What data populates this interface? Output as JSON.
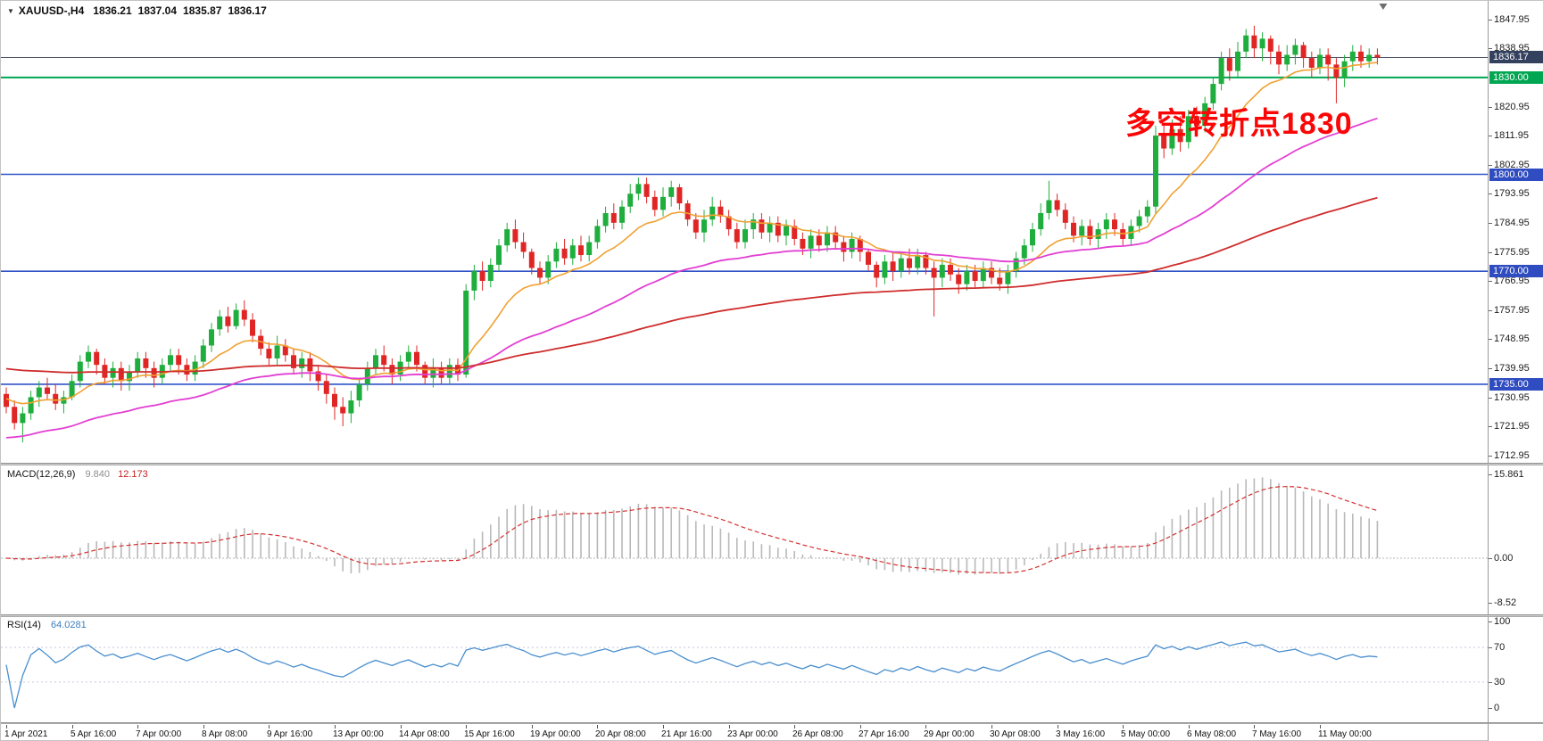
{
  "title": {
    "symbol_tf": "XAUUSD-,H4",
    "open": "1836.21",
    "high": "1837.04",
    "low": "1835.87",
    "close": "1836.17"
  },
  "annotation": {
    "text": "多空转折点1830",
    "color": "#fb0606"
  },
  "indicators": {
    "macd": {
      "label": "MACD(12,26,9)",
      "main_value": "9.840",
      "signal_value": "12.173"
    },
    "rsi": {
      "label": "RSI(14)",
      "value": "64.0281"
    }
  },
  "chart_data": [
    {
      "type": "candlestick",
      "symbol": "XAUUSD-",
      "timeframe": "H4",
      "title": "XAUUSD-,H4 1836.21 1837.04 1835.87 1836.17",
      "ylim": [
        1710.7,
        1853.7
      ],
      "y_ticks": [
        1847.95,
        1838.95,
        1820.95,
        1811.95,
        1802.95,
        1793.95,
        1784.95,
        1775.95,
        1766.95,
        1757.95,
        1748.95,
        1739.95,
        1730.95,
        1721.95,
        1712.95
      ],
      "x_labels": [
        "1 Apr 2021",
        "5 Apr 16:00",
        "7 Apr 00:00",
        "8 Apr 08:00",
        "9 Apr 16:00",
        "13 Apr 00:00",
        "14 Apr 08:00",
        "15 Apr 16:00",
        "19 Apr 00:00",
        "20 Apr 08:00",
        "21 Apr 16:00",
        "23 Apr 00:00",
        "26 Apr 08:00",
        "27 Apr 16:00",
        "29 Apr 00:00",
        "30 Apr 08:00",
        "3 May 16:00",
        "5 May 00:00",
        "6 May 08:00",
        "7 May 16:00",
        "11 May 00:00"
      ],
      "bars_per_label": 8,
      "colors": {
        "up": "#1fae3d",
        "down": "#e02525",
        "background": "#ffffff"
      },
      "price_badges": [
        {
          "price": 1836.17,
          "label": "1836.17",
          "bg": "#33415e"
        },
        {
          "price": 1830.0,
          "label": "1830.00",
          "bg": "#00a651"
        },
        {
          "price": 1800.0,
          "label": "1800.00",
          "bg": "#2f4cc0"
        },
        {
          "price": 1770.0,
          "label": "1770.00",
          "bg": "#2f4cc0"
        },
        {
          "price": 1735.0,
          "label": "1735.00",
          "bg": "#2f4cc0"
        }
      ],
      "horizontal_lines": [
        {
          "price": 1836.17,
          "color": "#4a5568",
          "width": 1,
          "style": "solid"
        },
        {
          "price": 1830.0,
          "color": "#00a651",
          "width": 2,
          "style": "solid"
        },
        {
          "price": 1800.0,
          "color": "#3152c8",
          "width": 1.6,
          "style": "solid"
        },
        {
          "price": 1770.0,
          "color": "#3152c8",
          "width": 1.6,
          "style": "solid"
        },
        {
          "price": 1735.0,
          "color": "#3152c8",
          "width": 1.6,
          "style": "solid"
        }
      ],
      "moving_averages": [
        {
          "name": "ma-fast",
          "period": 13,
          "seed": 1731,
          "color": "#f0a132",
          "width": 1.6
        },
        {
          "name": "ma-mid",
          "period": 45,
          "seed": 1718,
          "color": "#e23fd2",
          "width": 1.8
        },
        {
          "name": "ma-slow",
          "period": 120,
          "seed": 1740,
          "color": "#cf2c2c",
          "width": 1.8
        }
      ],
      "candles_ohlc": [
        [
          1732,
          1734,
          1726,
          1728
        ],
        [
          1728,
          1730,
          1721,
          1723
        ],
        [
          1723,
          1728,
          1717,
          1726
        ],
        [
          1726,
          1733,
          1724,
          1731
        ],
        [
          1731,
          1736,
          1728,
          1734
        ],
        [
          1734,
          1737,
          1730,
          1732
        ],
        [
          1732,
          1735,
          1727,
          1729
        ],
        [
          1729,
          1733,
          1726,
          1731
        ],
        [
          1731,
          1738,
          1730,
          1736
        ],
        [
          1736,
          1744,
          1734,
          1742
        ],
        [
          1742,
          1747,
          1740,
          1745
        ],
        [
          1745,
          1746,
          1738,
          1741
        ],
        [
          1741,
          1743,
          1735,
          1737
        ],
        [
          1737,
          1742,
          1734,
          1740
        ],
        [
          1740,
          1742,
          1733,
          1736
        ],
        [
          1736,
          1741,
          1733,
          1739
        ],
        [
          1739,
          1745,
          1737,
          1743
        ],
        [
          1743,
          1745,
          1737,
          1740
        ],
        [
          1740,
          1742,
          1734,
          1737
        ],
        [
          1737,
          1743,
          1735,
          1741
        ],
        [
          1741,
          1746,
          1739,
          1744
        ],
        [
          1744,
          1746,
          1738,
          1741
        ],
        [
          1741,
          1743,
          1736,
          1738
        ],
        [
          1738,
          1744,
          1736,
          1742
        ],
        [
          1742,
          1749,
          1740,
          1747
        ],
        [
          1747,
          1754,
          1745,
          1752
        ],
        [
          1752,
          1758,
          1750,
          1756
        ],
        [
          1756,
          1759,
          1751,
          1753
        ],
        [
          1753,
          1760,
          1752,
          1758
        ],
        [
          1758,
          1761,
          1753,
          1755
        ],
        [
          1755,
          1757,
          1748,
          1750
        ],
        [
          1750,
          1752,
          1744,
          1746
        ],
        [
          1746,
          1748,
          1741,
          1743
        ],
        [
          1743,
          1750,
          1741,
          1747
        ],
        [
          1747,
          1749,
          1742,
          1744
        ],
        [
          1744,
          1746,
          1738,
          1740
        ],
        [
          1740,
          1745,
          1737,
          1743
        ],
        [
          1743,
          1745,
          1736,
          1739
        ],
        [
          1739,
          1741,
          1733,
          1736
        ],
        [
          1736,
          1738,
          1729,
          1732
        ],
        [
          1732,
          1734,
          1724,
          1728
        ],
        [
          1728,
          1731,
          1722,
          1726
        ],
        [
          1726,
          1733,
          1723,
          1730
        ],
        [
          1730,
          1737,
          1728,
          1735
        ],
        [
          1735,
          1742,
          1733,
          1740
        ],
        [
          1740,
          1746,
          1738,
          1744
        ],
        [
          1744,
          1747,
          1739,
          1741
        ],
        [
          1741,
          1743,
          1735,
          1738
        ],
        [
          1738,
          1744,
          1736,
          1742
        ],
        [
          1742,
          1747,
          1740,
          1745
        ],
        [
          1745,
          1747,
          1739,
          1741
        ],
        [
          1741,
          1742,
          1735,
          1737
        ],
        [
          1737,
          1743,
          1734,
          1740
        ],
        [
          1740,
          1742,
          1735,
          1737
        ],
        [
          1737,
          1743,
          1735,
          1741
        ],
        [
          1741,
          1743,
          1736,
          1738
        ],
        [
          1738,
          1766,
          1737,
          1764
        ],
        [
          1764,
          1772,
          1761,
          1770
        ],
        [
          1770,
          1773,
          1764,
          1767
        ],
        [
          1767,
          1774,
          1765,
          1772
        ],
        [
          1772,
          1780,
          1770,
          1778
        ],
        [
          1778,
          1785,
          1776,
          1783
        ],
        [
          1783,
          1786,
          1777,
          1779
        ],
        [
          1779,
          1782,
          1774,
          1776
        ],
        [
          1776,
          1777,
          1769,
          1771
        ],
        [
          1771,
          1773,
          1766,
          1768
        ],
        [
          1768,
          1775,
          1766,
          1773
        ],
        [
          1773,
          1779,
          1771,
          1777
        ],
        [
          1777,
          1780,
          1772,
          1774
        ],
        [
          1774,
          1780,
          1772,
          1778
        ],
        [
          1778,
          1781,
          1773,
          1775
        ],
        [
          1775,
          1781,
          1773,
          1779
        ],
        [
          1779,
          1786,
          1777,
          1784
        ],
        [
          1784,
          1790,
          1782,
          1788
        ],
        [
          1788,
          1791,
          1783,
          1785
        ],
        [
          1785,
          1792,
          1783,
          1790
        ],
        [
          1790,
          1797,
          1788,
          1794
        ],
        [
          1794,
          1799,
          1792,
          1797
        ],
        [
          1797,
          1799,
          1791,
          1793
        ],
        [
          1793,
          1795,
          1787,
          1789
        ],
        [
          1789,
          1796,
          1787,
          1793
        ],
        [
          1793,
          1798,
          1790,
          1796
        ],
        [
          1796,
          1797,
          1789,
          1791
        ],
        [
          1791,
          1792,
          1784,
          1786
        ],
        [
          1786,
          1788,
          1780,
          1782
        ],
        [
          1782,
          1789,
          1779,
          1786
        ],
        [
          1786,
          1793,
          1784,
          1790
        ],
        [
          1790,
          1792,
          1785,
          1787
        ],
        [
          1787,
          1789,
          1781,
          1783
        ],
        [
          1783,
          1785,
          1777,
          1779
        ],
        [
          1779,
          1786,
          1777,
          1783
        ],
        [
          1783,
          1788,
          1780,
          1786
        ],
        [
          1786,
          1788,
          1780,
          1782
        ],
        [
          1782,
          1787,
          1779,
          1785
        ],
        [
          1785,
          1787,
          1779,
          1781
        ],
        [
          1781,
          1786,
          1778,
          1784
        ],
        [
          1784,
          1786,
          1778,
          1780
        ],
        [
          1780,
          1782,
          1775,
          1777
        ],
        [
          1777,
          1783,
          1774,
          1781
        ],
        [
          1781,
          1783,
          1776,
          1778
        ],
        [
          1778,
          1784,
          1776,
          1782
        ],
        [
          1782,
          1784,
          1777,
          1779
        ],
        [
          1779,
          1781,
          1773,
          1776
        ],
        [
          1776,
          1782,
          1774,
          1780
        ],
        [
          1780,
          1781,
          1773,
          1776
        ],
        [
          1776,
          1777,
          1770,
          1772
        ],
        [
          1772,
          1773,
          1765,
          1768
        ],
        [
          1768,
          1775,
          1766,
          1773
        ],
        [
          1773,
          1776,
          1767,
          1770
        ],
        [
          1770,
          1776,
          1768,
          1774
        ],
        [
          1774,
          1777,
          1769,
          1771
        ],
        [
          1771,
          1777,
          1769,
          1775
        ],
        [
          1775,
          1776,
          1769,
          1771
        ],
        [
          1771,
          1773,
          1756,
          1768
        ],
        [
          1768,
          1774,
          1765,
          1772
        ],
        [
          1772,
          1774,
          1767,
          1769
        ],
        [
          1769,
          1771,
          1763,
          1766
        ],
        [
          1766,
          1772,
          1764,
          1770
        ],
        [
          1770,
          1772,
          1765,
          1767
        ],
        [
          1767,
          1773,
          1765,
          1771
        ],
        [
          1771,
          1773,
          1766,
          1768
        ],
        [
          1768,
          1771,
          1764,
          1766
        ],
        [
          1766,
          1772,
          1763,
          1770
        ],
        [
          1770,
          1776,
          1768,
          1774
        ],
        [
          1774,
          1780,
          1772,
          1778
        ],
        [
          1778,
          1785,
          1776,
          1783
        ],
        [
          1783,
          1791,
          1781,
          1788
        ],
        [
          1788,
          1798,
          1786,
          1792
        ],
        [
          1792,
          1794,
          1787,
          1789
        ],
        [
          1789,
          1791,
          1783,
          1785
        ],
        [
          1785,
          1787,
          1779,
          1781
        ],
        [
          1781,
          1786,
          1778,
          1784
        ],
        [
          1784,
          1786,
          1778,
          1780
        ],
        [
          1780,
          1785,
          1777,
          1783
        ],
        [
          1783,
          1788,
          1780,
          1786
        ],
        [
          1786,
          1788,
          1781,
          1783
        ],
        [
          1783,
          1785,
          1778,
          1780
        ],
        [
          1780,
          1786,
          1778,
          1784
        ],
        [
          1784,
          1789,
          1782,
          1787
        ],
        [
          1787,
          1792,
          1785,
          1790
        ],
        [
          1790,
          1815,
          1788,
          1812
        ],
        [
          1812,
          1816,
          1805,
          1808
        ],
        [
          1808,
          1817,
          1806,
          1814
        ],
        [
          1814,
          1818,
          1807,
          1810
        ],
        [
          1810,
          1820,
          1808,
          1818
        ],
        [
          1818,
          1821,
          1812,
          1815
        ],
        [
          1815,
          1824,
          1813,
          1822
        ],
        [
          1822,
          1830,
          1820,
          1828
        ],
        [
          1828,
          1838,
          1826,
          1836
        ],
        [
          1836,
          1839,
          1829,
          1832
        ],
        [
          1832,
          1841,
          1830,
          1838
        ],
        [
          1838,
          1845,
          1836,
          1843
        ],
        [
          1843,
          1846,
          1836,
          1839
        ],
        [
          1839,
          1844,
          1835,
          1842
        ],
        [
          1842,
          1843,
          1834,
          1838
        ],
        [
          1838,
          1840,
          1831,
          1834
        ],
        [
          1834,
          1840,
          1832,
          1837
        ],
        [
          1837,
          1842,
          1834,
          1840
        ],
        [
          1840,
          1841,
          1833,
          1836
        ],
        [
          1836,
          1838,
          1830,
          1833
        ],
        [
          1833,
          1839,
          1831,
          1837
        ],
        [
          1837,
          1839,
          1829,
          1834
        ],
        [
          1834,
          1836,
          1822,
          1830
        ],
        [
          1830,
          1837,
          1827,
          1835
        ],
        [
          1835,
          1840,
          1832,
          1838
        ],
        [
          1838,
          1840,
          1833,
          1835
        ],
        [
          1835,
          1839,
          1833,
          1837
        ],
        [
          1837,
          1839,
          1834,
          1836.17
        ]
      ]
    },
    {
      "type": "bar",
      "name": "MACD",
      "params": {
        "fast": 12,
        "slow": 26,
        "signal": 9
      },
      "current_values": {
        "main": 9.84,
        "signal": 12.173
      },
      "ylim": [
        -10.63,
        17.55
      ],
      "y_ticks": [
        {
          "v": 15.861,
          "label": "15.861"
        },
        {
          "v": 0,
          "label": "0.00"
        },
        {
          "v": -8.52,
          "label": "-8.52"
        }
      ],
      "colors": {
        "histogram": "#b9b9b9",
        "signal": "#d43131",
        "zero": "#b5b5b5"
      }
    },
    {
      "type": "line",
      "name": "RSI",
      "period": 14,
      "current_value": 64.0281,
      "levels": [
        70,
        30
      ],
      "ylim": [
        0,
        100
      ],
      "y_ticks": [
        100,
        70,
        30,
        0
      ],
      "colors": {
        "line": "#4a8fce",
        "level": "#c6c6dd"
      }
    }
  ]
}
